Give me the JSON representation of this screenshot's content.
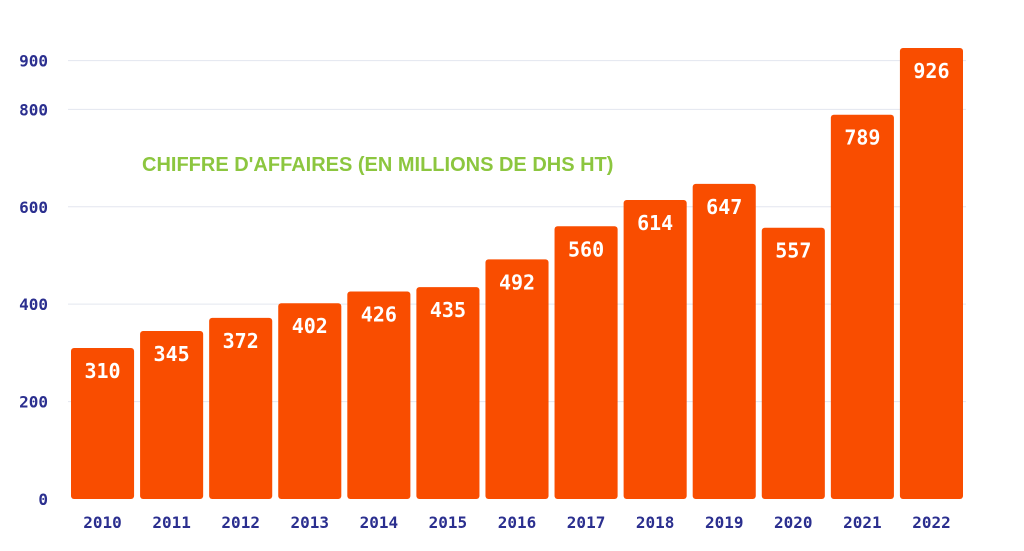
{
  "chart_data": {
    "type": "bar",
    "title": "CHIFFRE D'AFFAIRES (EN MILLIONS DE DHS HT)",
    "categories": [
      "2010",
      "2011",
      "2012",
      "2013",
      "2014",
      "2015",
      "2016",
      "2017",
      "2018",
      "2019",
      "2020",
      "2021",
      "2022"
    ],
    "values": [
      310,
      345,
      372,
      402,
      426,
      435,
      492,
      560,
      614,
      647,
      557,
      789,
      926
    ],
    "y_ticks": [
      0,
      200,
      400,
      600,
      800,
      900
    ],
    "ylim": [
      0,
      926
    ],
    "grid": true,
    "data_labels": true,
    "colors": {
      "bar": "#f94d00",
      "label": "#ffffff",
      "axis_text": "#2b2f8f",
      "title": "#8cc63f",
      "grid": "#e3e6ef"
    }
  }
}
